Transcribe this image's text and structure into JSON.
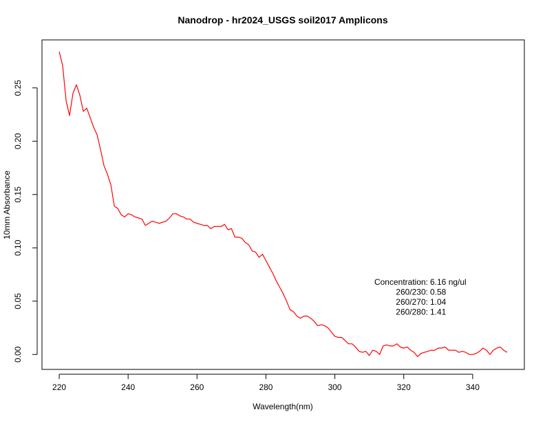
{
  "chart_data": {
    "type": "line",
    "title": "Nanodrop - hr2024_USGS soil2017 Amplicons",
    "xlabel": "Wavelength(nm)",
    "ylabel": "10mm Absorbance",
    "xlim": [
      215,
      355
    ],
    "ylim": [
      -0.014,
      0.295
    ],
    "x_ticks": [
      220,
      240,
      260,
      280,
      300,
      320,
      340
    ],
    "x_tick_labels": [
      "220",
      "240",
      "260",
      "280",
      "300",
      "320",
      "340"
    ],
    "y_ticks": [
      0.0,
      0.05,
      0.1,
      0.15,
      0.2,
      0.25
    ],
    "y_tick_labels": [
      "0.00",
      "0.05",
      "0.10",
      "0.15",
      "0.20",
      "0.25"
    ],
    "grid": false,
    "line_color": "#ff0000",
    "series": [
      {
        "x": [
          220,
          221,
          222,
          223,
          224,
          225,
          226,
          227,
          228,
          229,
          230,
          231,
          232,
          233,
          234,
          235,
          236,
          237,
          238,
          239,
          240,
          241,
          242,
          243,
          244,
          245,
          246,
          247,
          248,
          249,
          250,
          251,
          252,
          253,
          254,
          255,
          256,
          257,
          258,
          259,
          260,
          261,
          262,
          263,
          264,
          265,
          266,
          267,
          268,
          269,
          270,
          271,
          272,
          273,
          274,
          275,
          276,
          277,
          278,
          279,
          280,
          281,
          282,
          283,
          284,
          285,
          286,
          287,
          288,
          289,
          290,
          291,
          292,
          293,
          294,
          295,
          296,
          297,
          298,
          299,
          300,
          301,
          302,
          303,
          304,
          305,
          306,
          307,
          308,
          309,
          310,
          311,
          312,
          313,
          314,
          315,
          316,
          317,
          318,
          319,
          320,
          321,
          322,
          323,
          324,
          325,
          326,
          327,
          328,
          329,
          330,
          331,
          332,
          333,
          334,
          335,
          336,
          337,
          338,
          339,
          340,
          341,
          342,
          343,
          344,
          345,
          346,
          347,
          348,
          349,
          350
        ],
        "y": [
          0.284,
          0.271,
          0.238,
          0.224,
          0.245,
          0.253,
          0.243,
          0.228,
          0.231,
          0.222,
          0.213,
          0.206,
          0.192,
          0.177,
          0.169,
          0.159,
          0.139,
          0.137,
          0.131,
          0.129,
          0.132,
          0.131,
          0.129,
          0.128,
          0.127,
          0.121,
          0.123,
          0.125,
          0.124,
          0.123,
          0.124,
          0.125,
          0.128,
          0.132,
          0.132,
          0.13,
          0.129,
          0.127,
          0.127,
          0.124,
          0.123,
          0.122,
          0.121,
          0.121,
          0.118,
          0.12,
          0.12,
          0.12,
          0.122,
          0.117,
          0.118,
          0.11,
          0.11,
          0.109,
          0.105,
          0.103,
          0.097,
          0.096,
          0.091,
          0.094,
          0.088,
          0.082,
          0.076,
          0.069,
          0.063,
          0.057,
          0.05,
          0.042,
          0.04,
          0.036,
          0.034,
          0.036,
          0.036,
          0.034,
          0.031,
          0.027,
          0.028,
          0.027,
          0.025,
          0.021,
          0.017,
          0.016,
          0.016,
          0.013,
          0.01,
          0.01,
          0.007,
          0.003,
          0.002,
          0.003,
          -0.001,
          0.004,
          0.003,
          0.0,
          0.008,
          0.009,
          0.008,
          0.008,
          0.01,
          0.007,
          0.006,
          0.007,
          0.004,
          0.002,
          -0.002,
          0.001,
          0.002,
          0.003,
          0.004,
          0.004,
          0.006,
          0.006,
          0.007,
          0.004,
          0.004,
          0.004,
          0.002,
          0.003,
          0.002,
          0.0,
          0.0,
          0.001,
          0.003,
          0.006,
          0.004,
          0.0,
          0.004,
          0.006,
          0.007,
          0.004,
          0.002
        ]
      }
    ],
    "annotations": [
      {
        "label": "Concentration:",
        "value": "6.16 ng/ul"
      },
      {
        "label": "260/230:",
        "value": "0.58"
      },
      {
        "label": "260/270:",
        "value": "1.04"
      },
      {
        "label": "260/280:",
        "value": "1.41"
      }
    ]
  }
}
